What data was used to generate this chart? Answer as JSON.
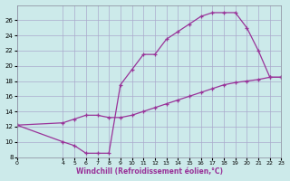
{
  "xlabel": "Windchill (Refroidissement éolien,°C)",
  "bg_color": "#cceaea",
  "grid_color": "#aaaacc",
  "line_color": "#993399",
  "curve1_x": [
    0,
    4,
    5,
    6,
    7,
    8,
    9,
    10,
    11,
    12,
    13,
    14,
    15,
    16,
    17,
    18,
    19,
    20,
    21,
    22,
    23
  ],
  "curve1_y": [
    12.2,
    10.0,
    9.5,
    8.5,
    8.5,
    8.5,
    17.5,
    19.5,
    21.5,
    21.5,
    23.5,
    24.5,
    25.5,
    26.5,
    27.0,
    27.0,
    27.0,
    25.0,
    22.0,
    18.5,
    18.5
  ],
  "curve2_x": [
    0,
    4,
    5,
    6,
    7,
    8,
    9,
    10,
    11,
    12,
    13,
    14,
    15,
    16,
    17,
    18,
    19,
    20,
    21,
    22,
    23
  ],
  "curve2_y": [
    12.2,
    12.5,
    13.0,
    13.5,
    13.5,
    13.2,
    13.2,
    13.5,
    14.0,
    14.5,
    15.0,
    15.5,
    16.0,
    16.5,
    17.0,
    17.5,
    17.8,
    18.0,
    18.2,
    18.5,
    18.5
  ],
  "xlim": [
    0,
    23
  ],
  "ylim": [
    8,
    28
  ],
  "xtick_labels": [
    "0",
    "",
    "4",
    "5",
    "6",
    "7",
    "8",
    "9",
    "10",
    "11",
    "12",
    "13",
    "14",
    "15",
    "16",
    "17",
    "18",
    "19",
    "20",
    "21",
    "22",
    "23"
  ],
  "yticks": [
    8,
    10,
    12,
    14,
    16,
    18,
    20,
    22,
    24,
    26
  ]
}
